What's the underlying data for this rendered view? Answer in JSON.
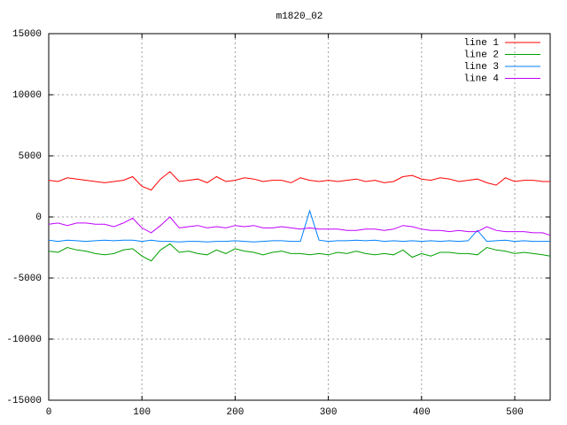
{
  "chart_data": {
    "type": "line",
    "title": "m1820_02",
    "x": [
      0,
      10,
      20,
      30,
      40,
      50,
      60,
      70,
      80,
      90,
      100,
      110,
      120,
      130,
      140,
      150,
      160,
      170,
      180,
      190,
      200,
      210,
      220,
      230,
      240,
      250,
      260,
      270,
      280,
      290,
      300,
      310,
      320,
      330,
      340,
      350,
      360,
      370,
      380,
      390,
      400,
      410,
      420,
      430,
      440,
      450,
      460,
      470,
      480,
      490,
      500,
      510,
      520,
      530,
      538
    ],
    "xlim": [
      0,
      538
    ],
    "xticks": [
      0,
      100,
      200,
      300,
      400,
      500
    ],
    "ylim": [
      -15000,
      15000
    ],
    "yticks": [
      -15000,
      -10000,
      -5000,
      0,
      5000,
      10000,
      15000
    ],
    "grid": true,
    "legend": "top-right",
    "series": [
      {
        "name": "line 1",
        "color": "#ff0000",
        "values": [
          3000,
          2900,
          3200,
          3100,
          3000,
          2900,
          2800,
          2900,
          3000,
          3300,
          2500,
          2200,
          3100,
          3700,
          2900,
          3000,
          3100,
          2800,
          3300,
          2900,
          3000,
          3200,
          3100,
          2900,
          3000,
          3000,
          2800,
          3200,
          3000,
          2900,
          3000,
          2900,
          3000,
          3100,
          2900,
          3000,
          2800,
          2900,
          3300,
          3400,
          3100,
          3000,
          3200,
          3100,
          2900,
          3000,
          3100,
          2800,
          2600,
          3200,
          2900,
          3000,
          3000,
          2900,
          2900
        ]
      },
      {
        "name": "line 2",
        "color": "#00a000",
        "values": [
          -2800,
          -2900,
          -2500,
          -2700,
          -2800,
          -3000,
          -3100,
          -3000,
          -2700,
          -2600,
          -3200,
          -3600,
          -2700,
          -2200,
          -2900,
          -2800,
          -3000,
          -3100,
          -2700,
          -3000,
          -2600,
          -2800,
          -2900,
          -3100,
          -2900,
          -2800,
          -3000,
          -3000,
          -3100,
          -3000,
          -3100,
          -2900,
          -3000,
          -2800,
          -3000,
          -3100,
          -3000,
          -3100,
          -2700,
          -3300,
          -3000,
          -3200,
          -2900,
          -2900,
          -3000,
          -3000,
          -3100,
          -2500,
          -2700,
          -2800,
          -3000,
          -2900,
          -3000,
          -3100,
          -3200
        ]
      },
      {
        "name": "line 3",
        "color": "#0080ff",
        "values": [
          -1900,
          -2000,
          -1900,
          -1950,
          -2000,
          -1950,
          -1900,
          -1950,
          -1900,
          -1900,
          -2000,
          -1900,
          -2000,
          -2000,
          -2050,
          -2000,
          -2000,
          -2050,
          -2000,
          -2000,
          -1950,
          -2000,
          -2050,
          -2000,
          -1950,
          -1950,
          -2000,
          -2000,
          500,
          -1900,
          -2000,
          -1950,
          -1950,
          -1900,
          -1950,
          -1900,
          -2000,
          -1950,
          -2000,
          -1950,
          -2000,
          -1950,
          -2000,
          -1950,
          -2000,
          -1950,
          -1100,
          -2000,
          -1950,
          -1900,
          -2000,
          -1950,
          -2000,
          -2000,
          -2000
        ]
      },
      {
        "name": "line 4",
        "color": "#c000ff",
        "values": [
          -600,
          -500,
          -700,
          -500,
          -500,
          -600,
          -600,
          -800,
          -500,
          -100,
          -900,
          -1300,
          -700,
          0,
          -900,
          -800,
          -700,
          -900,
          -800,
          -900,
          -700,
          -800,
          -700,
          -900,
          -900,
          -800,
          -900,
          -1000,
          -900,
          -1000,
          -1000,
          -1000,
          -1100,
          -1100,
          -1000,
          -1000,
          -1100,
          -1000,
          -700,
          -800,
          -1000,
          -1100,
          -1100,
          -1200,
          -1100,
          -1200,
          -1200,
          -800,
          -1100,
          -1200,
          -1200,
          -1200,
          -1300,
          -1300,
          -1500
        ]
      }
    ]
  }
}
